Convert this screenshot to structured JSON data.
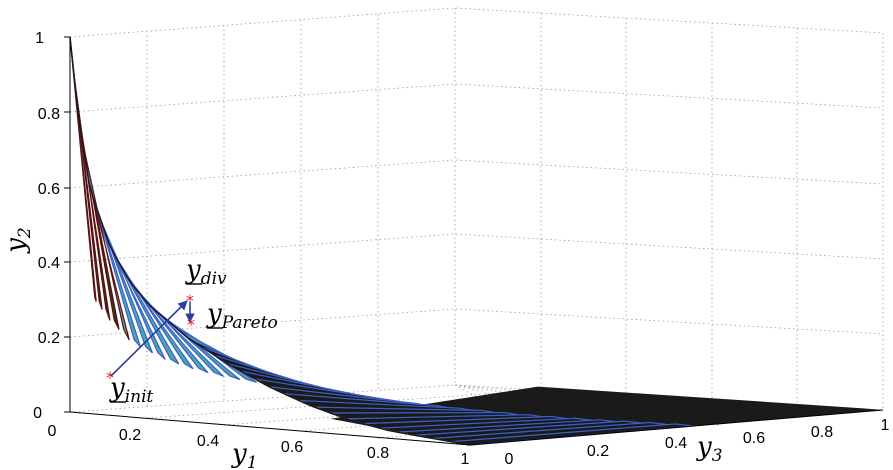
{
  "chart_data": {
    "type": "surface",
    "title": "",
    "ylabel": "y",
    "ylabel_sub": "2",
    "x1label": "y",
    "x1label_sub": "1",
    "x3label": "y",
    "x3label_sub": "3",
    "y_ticks": [
      "0",
      "0.2",
      "0.4",
      "0.6",
      "0.8",
      "1"
    ],
    "y1_ticks": [
      "0",
      "0.2",
      "0.4",
      "0.6",
      "0.8",
      "1"
    ],
    "y3_ticks": [
      "0",
      "0.2",
      "0.4",
      "0.6",
      "0.8",
      "1"
    ],
    "ylim": [
      0,
      1
    ],
    "y1lim": [
      0,
      1
    ],
    "y3lim": [
      0,
      1
    ],
    "grid": true,
    "surface": {
      "description_values": "Pareto front surface with y2 decreasing rapidly from 1 near y1=0 and flattening toward 0 as y1 and y3 increase",
      "front_curve_y1": [
        0.0,
        0.02,
        0.05,
        0.1,
        0.15,
        0.2,
        0.3,
        0.4,
        0.5,
        0.6,
        0.7,
        0.8,
        0.9,
        1.0
      ],
      "front_curve_y2": [
        1.0,
        0.8,
        0.6,
        0.45,
        0.36,
        0.3,
        0.22,
        0.16,
        0.11,
        0.07,
        0.04,
        0.02,
        0.01,
        0.0
      ]
    },
    "points": [
      {
        "label": "y",
        "sub": "init",
        "y1": 0.25,
        "y2": 0.1,
        "y3": 0.0
      },
      {
        "label": "y",
        "sub": "div",
        "y1": 0.45,
        "y2": 0.3,
        "y3": 0.0
      },
      {
        "label": "y",
        "sub": "Pareto",
        "y1": 0.45,
        "y2": 0.24,
        "y3": 0.0
      }
    ],
    "colors": {
      "surface_dark": "#1a1a1a",
      "surface_blue": "#3a5fc8",
      "surface_cyan": "#4aa6b4",
      "arrow": "#2b3fa0",
      "marker": "#e0202a"
    }
  }
}
